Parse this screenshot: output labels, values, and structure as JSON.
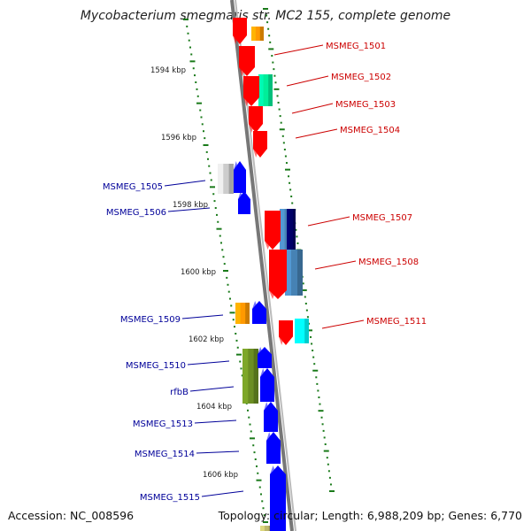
{
  "title": "Mycobacterium smegmatis str. MC2 155, complete genome",
  "footer": {
    "accession": "Accession: NC_008596",
    "summary": "Topology: circular; Length: 6,988,209 bp; Genes: 6,770"
  },
  "ruler": [
    "1594 kbp",
    "1596 kbp",
    "1598 kbp",
    "1600 kbp",
    "1602 kbp",
    "1604 kbp",
    "1606 kbp"
  ],
  "genes": [
    {
      "name": "MSMEG_1501",
      "strand": "reverse",
      "color": "#ff0000"
    },
    {
      "name": "MSMEG_1502",
      "strand": "reverse",
      "color": "#ff0000"
    },
    {
      "name": "MSMEG_1503",
      "strand": "reverse",
      "color": "#ff0000"
    },
    {
      "name": "MSMEG_1504",
      "strand": "reverse",
      "color": "#ff0000"
    },
    {
      "name": "MSMEG_1505",
      "strand": "forward",
      "color": "#0000ff"
    },
    {
      "name": "MSMEG_1506",
      "strand": "forward",
      "color": "#0000ff"
    },
    {
      "name": "MSMEG_1507",
      "strand": "reverse",
      "color": "#ff0000"
    },
    {
      "name": "MSMEG_1508",
      "strand": "reverse",
      "color": "#ff0000"
    },
    {
      "name": "MSMEG_1509",
      "strand": "forward",
      "color": "#0000ff"
    },
    {
      "name": "MSMEG_1511",
      "strand": "reverse",
      "color": "#ff0000"
    },
    {
      "name": "MSMEG_1510",
      "strand": "forward",
      "color": "#0000ff"
    },
    {
      "name": "rfbB",
      "strand": "forward",
      "color": "#0000ff"
    },
    {
      "name": "MSMEG_1513",
      "strand": "forward",
      "color": "#0000ff"
    },
    {
      "name": "MSMEG_1514",
      "strand": "forward",
      "color": "#0000ff"
    },
    {
      "name": "MSMEG_1515",
      "strand": "forward",
      "color": "#0000ff"
    }
  ],
  "colors": {
    "forward": "#0000ff",
    "reverse": "#ff0000",
    "backbone": "#888888",
    "ruler_ticks": "#1a7a1a",
    "cog_orange": "#ff9900",
    "cog_green": "#00ee99",
    "cog_grey": "#cccccc",
    "cog_steelblue": "#4682b4",
    "cog_navy": "#000066",
    "cog_cyan": "#00ffff",
    "cog_olive": "#6b8e23",
    "cog_khaki": "#bdb76b"
  }
}
